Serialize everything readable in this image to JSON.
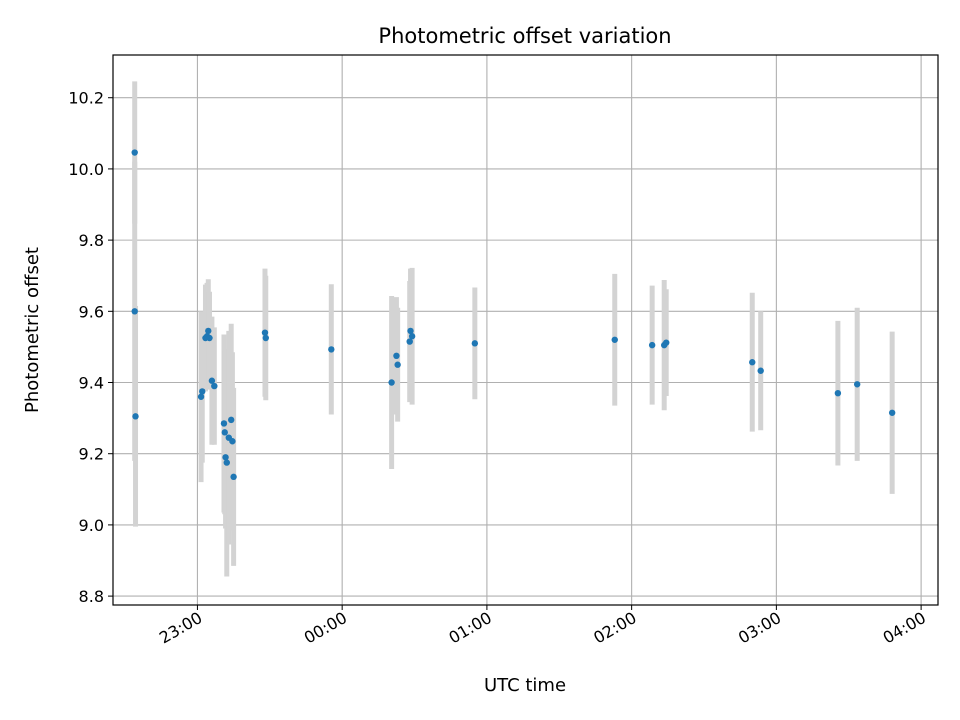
{
  "chart_data": {
    "type": "scatter",
    "title": "Photometric offset variation",
    "xlabel": "UTC time",
    "ylabel": "Photometric offset",
    "grid": true,
    "xlim": [
      "2024-01-01T22:25:00",
      "2024-01-02T04:07:00"
    ],
    "ylim": [
      8.775,
      10.32
    ],
    "x_ticks": [
      {
        "value": "2024-01-01T23:00:00",
        "label": "23:00"
      },
      {
        "value": "2024-01-02T00:00:00",
        "label": "00:00"
      },
      {
        "value": "2024-01-02T01:00:00",
        "label": "01:00"
      },
      {
        "value": "2024-01-02T02:00:00",
        "label": "02:00"
      },
      {
        "value": "2024-01-02T03:00:00",
        "label": "03:00"
      },
      {
        "value": "2024-01-02T04:00:00",
        "label": "04:00"
      }
    ],
    "y_ticks": [
      8.8,
      9.0,
      9.2,
      9.4,
      9.6,
      9.8,
      10.0,
      10.2
    ],
    "y_tick_labels": [
      "8.8",
      "9.0",
      "9.2",
      "9.4",
      "9.6",
      "9.8",
      "10.0",
      "10.2"
    ],
    "point_color": "#1f77b4",
    "errorbar_color": "#d3d3d3",
    "points": [
      {
        "x": "2024-01-01T22:34:00",
        "y": 10.046,
        "yerr": 0.2
      },
      {
        "x": "2024-01-01T22:34:00",
        "y": 9.6,
        "yerr": 0.42
      },
      {
        "x": "2024-01-01T22:34:20",
        "y": 9.305,
        "yerr": 0.31
      },
      {
        "x": "2024-01-01T23:01:30",
        "y": 9.36,
        "yerr": 0.24
      },
      {
        "x": "2024-01-01T23:02:00",
        "y": 9.375,
        "yerr": 0.2
      },
      {
        "x": "2024-01-01T23:03:20",
        "y": 9.525,
        "yerr": 0.15
      },
      {
        "x": "2024-01-01T23:04:00",
        "y": 9.53,
        "yerr": 0.15
      },
      {
        "x": "2024-01-01T23:04:30",
        "y": 9.545,
        "yerr": 0.145
      },
      {
        "x": "2024-01-01T23:05:00",
        "y": 9.525,
        "yerr": 0.13
      },
      {
        "x": "2024-01-01T23:06:00",
        "y": 9.405,
        "yerr": 0.18
      },
      {
        "x": "2024-01-01T23:07:00",
        "y": 9.39,
        "yerr": 0.165
      },
      {
        "x": "2024-01-01T23:11:00",
        "y": 9.285,
        "yerr": 0.25
      },
      {
        "x": "2024-01-01T23:11:20",
        "y": 9.26,
        "yerr": 0.23
      },
      {
        "x": "2024-01-01T23:11:40",
        "y": 9.19,
        "yerr": 0.2
      },
      {
        "x": "2024-01-01T23:12:10",
        "y": 9.175,
        "yerr": 0.32
      },
      {
        "x": "2024-01-01T23:13:00",
        "y": 9.245,
        "yerr": 0.3
      },
      {
        "x": "2024-01-01T23:14:00",
        "y": 9.295,
        "yerr": 0.27
      },
      {
        "x": "2024-01-01T23:14:30",
        "y": 9.235,
        "yerr": 0.25
      },
      {
        "x": "2024-01-01T23:15:00",
        "y": 9.135,
        "yerr": 0.25
      },
      {
        "x": "2024-01-01T23:28:00",
        "y": 9.54,
        "yerr": 0.18
      },
      {
        "x": "2024-01-01T23:28:20",
        "y": 9.525,
        "yerr": 0.175
      },
      {
        "x": "2024-01-01T23:55:30",
        "y": 9.493,
        "yerr": 0.183
      },
      {
        "x": "2024-01-02T00:20:30",
        "y": 9.4,
        "yerr": 0.243
      },
      {
        "x": "2024-01-02T00:22:30",
        "y": 9.475,
        "yerr": 0.165
      },
      {
        "x": "2024-01-02T00:23:00",
        "y": 9.45,
        "yerr": 0.16
      },
      {
        "x": "2024-01-02T00:28:00",
        "y": 9.515,
        "yerr": 0.17
      },
      {
        "x": "2024-01-02T00:28:20",
        "y": 9.545,
        "yerr": 0.175
      },
      {
        "x": "2024-01-02T00:29:00",
        "y": 9.53,
        "yerr": 0.192
      },
      {
        "x": "2024-01-02T00:55:00",
        "y": 9.51,
        "yerr": 0.157
      },
      {
        "x": "2024-01-02T01:53:00",
        "y": 9.52,
        "yerr": 0.185
      },
      {
        "x": "2024-01-02T02:08:30",
        "y": 9.505,
        "yerr": 0.167
      },
      {
        "x": "2024-01-02T02:13:30",
        "y": 9.505,
        "yerr": 0.183
      },
      {
        "x": "2024-01-02T02:14:20",
        "y": 9.512,
        "yerr": 0.15
      },
      {
        "x": "2024-01-02T02:50:00",
        "y": 9.457,
        "yerr": 0.195
      },
      {
        "x": "2024-01-02T02:53:30",
        "y": 9.433,
        "yerr": 0.167
      },
      {
        "x": "2024-01-02T03:25:30",
        "y": 9.37,
        "yerr": 0.203
      },
      {
        "x": "2024-01-02T03:33:30",
        "y": 9.395,
        "yerr": 0.215
      },
      {
        "x": "2024-01-02T03:48:00",
        "y": 9.315,
        "yerr": 0.228
      }
    ]
  }
}
